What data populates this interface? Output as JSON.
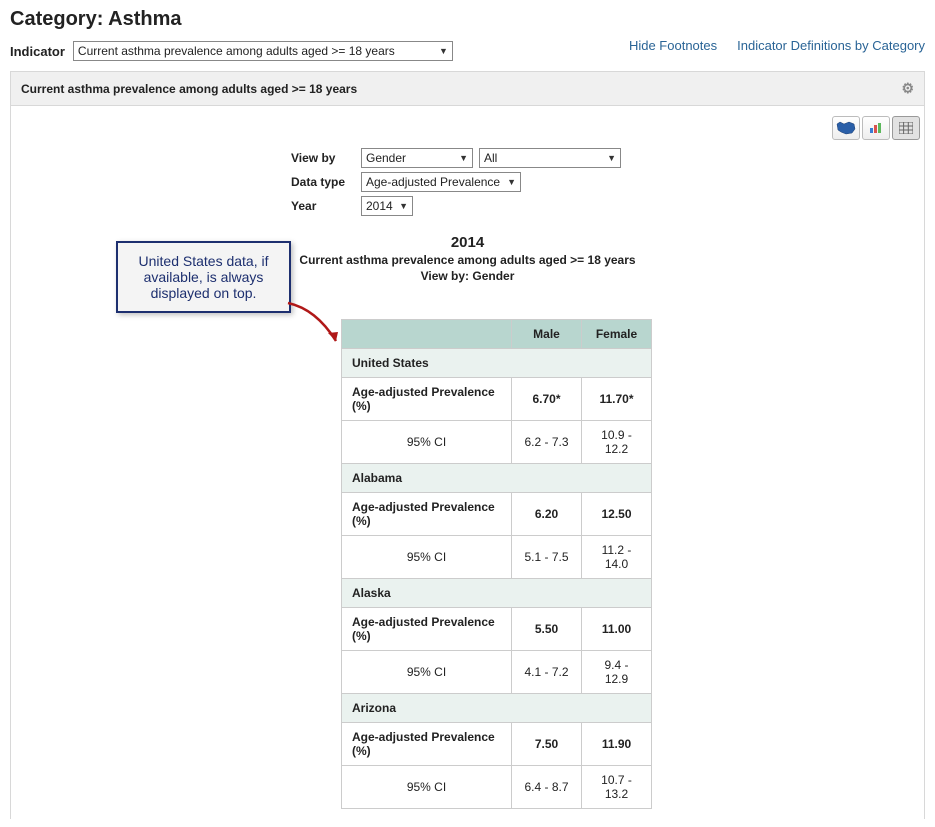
{
  "category": {
    "prefix": "Category: ",
    "name": "Asthma"
  },
  "indicator": {
    "label": "Indicator",
    "selected": "Current asthma prevalence among adults aged >= 18 years"
  },
  "links": {
    "hide_footnotes": "Hide Footnotes",
    "indicator_defs": "Indicator Definitions by Category"
  },
  "panel_title": "Current asthma prevalence among adults aged >= 18 years",
  "controls": {
    "view_by_label": "View by",
    "view_by_value": "Gender",
    "view_by_filter": "All",
    "data_type_label": "Data type",
    "data_type_value": "Age-adjusted Prevalence",
    "year_label": "Year",
    "year_value": "2014"
  },
  "chart_header": {
    "year": "2014",
    "indicator": "Current asthma prevalence among adults aged >= 18 years",
    "view_by": "View by: Gender"
  },
  "callout_text": "United States data, if available, is always displayed on top.",
  "table": {
    "columns": [
      "Male",
      "Female"
    ],
    "metric_label": "Age-adjusted Prevalence (%)",
    "ci_label": "95% CI",
    "groups": [
      {
        "name": "United States",
        "values": [
          "6.70*",
          "11.70*"
        ],
        "ci": [
          "6.2 - 7.3",
          "10.9 - 12.2"
        ]
      },
      {
        "name": "Alabama",
        "values": [
          "6.20",
          "12.50"
        ],
        "ci": [
          "5.1 - 7.5",
          "11.2 - 14.0"
        ]
      },
      {
        "name": "Alaska",
        "values": [
          "5.50",
          "11.00"
        ],
        "ci": [
          "4.1 - 7.2",
          "9.4 - 12.9"
        ]
      },
      {
        "name": "Arizona",
        "values": [
          "7.50",
          "11.90"
        ],
        "ci": [
          "6.4 - 8.7",
          "10.7 - 13.2"
        ]
      }
    ]
  },
  "colors": {
    "table_header_bg": "#b8d6cf",
    "state_row_bg": "#eaf2ef",
    "callout_border": "#1d2f6f",
    "link": "#2a6496",
    "arrow": "#b01818"
  }
}
